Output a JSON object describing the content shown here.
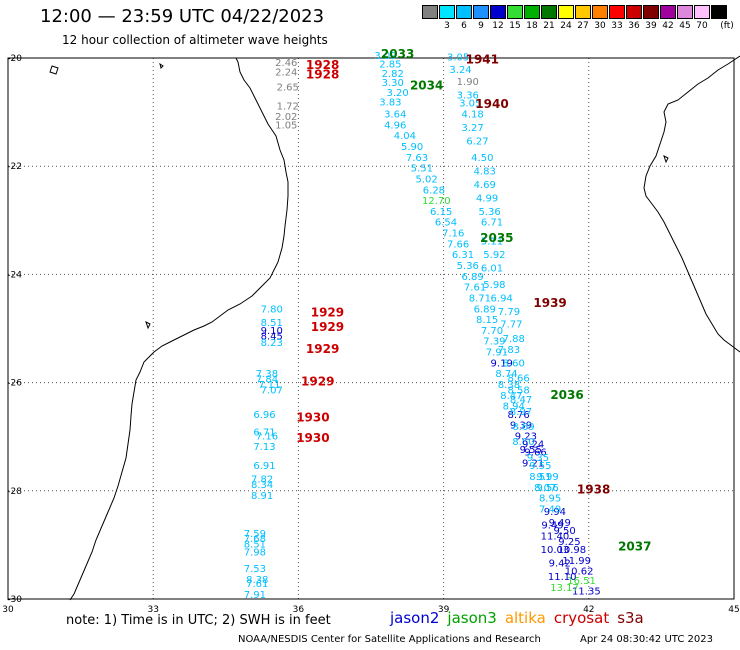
{
  "header": {
    "title": "12:00 — 23:59 UTC 04/22/2023",
    "subtitle": "12 hour collection of altimeter wave heights"
  },
  "scale": {
    "unit": "(ft)",
    "swatches": [
      {
        "label": "",
        "color": "#808080"
      },
      {
        "label": "3",
        "color": "#00e5ff"
      },
      {
        "label": "6",
        "color": "#00bfff"
      },
      {
        "label": "9",
        "color": "#1e90ff"
      },
      {
        "label": "12",
        "color": "#0000cd"
      },
      {
        "label": "15",
        "color": "#33dd33"
      },
      {
        "label": "18",
        "color": "#00b000"
      },
      {
        "label": "21",
        "color": "#007800"
      },
      {
        "label": "24",
        "color": "#ffff00"
      },
      {
        "label": "27",
        "color": "#ffc800"
      },
      {
        "label": "30",
        "color": "#ff8000"
      },
      {
        "label": "33",
        "color": "#ff0000"
      },
      {
        "label": "36",
        "color": "#cc0000"
      },
      {
        "label": "39",
        "color": "#800000"
      },
      {
        "label": "42",
        "color": "#a000a0"
      },
      {
        "label": "45",
        "color": "#dd88dd"
      },
      {
        "label": "70",
        "color": "#ffc0ff"
      },
      {
        "label": "",
        "color": "#000000"
      }
    ]
  },
  "map": {
    "lon_range": [
      30,
      45
    ],
    "lat_range": [
      -30,
      -20
    ],
    "lon_ticks": [
      "30",
      "33",
      "36",
      "39",
      "42",
      "45"
    ],
    "lat_ticks": [
      "-20",
      "-22",
      "-24",
      "-26",
      "-28",
      "-30"
    ],
    "grid": "dotted"
  },
  "observations": [
    {
      "t": "2.46",
      "lon": 35.75,
      "lat": -20.15,
      "c": "#808080"
    },
    {
      "t": "2.24",
      "lon": 35.75,
      "lat": -20.32,
      "c": "#808080"
    },
    {
      "t": "2.65",
      "lon": 35.78,
      "lat": -20.6,
      "c": "#808080"
    },
    {
      "t": "1.72",
      "lon": 35.78,
      "lat": -20.95,
      "c": "#808080"
    },
    {
      "t": "2.02",
      "lon": 35.75,
      "lat": -21.15,
      "c": "#808080"
    },
    {
      "t": "1.05",
      "lon": 35.75,
      "lat": -21.3,
      "c": "#808080"
    },
    {
      "t": "3.09",
      "lon": 37.8,
      "lat": -20.02,
      "c": "#00bfff"
    },
    {
      "t": "2.85",
      "lon": 37.9,
      "lat": -20.18,
      "c": "#00bfff"
    },
    {
      "t": "2.82",
      "lon": 37.95,
      "lat": -20.35,
      "c": "#00bfff"
    },
    {
      "t": "3.30",
      "lon": 37.95,
      "lat": -20.52,
      "c": "#00bfff"
    },
    {
      "t": "3.20",
      "lon": 38.05,
      "lat": -20.7,
      "c": "#00bfff"
    },
    {
      "t": "3.83",
      "lon": 37.9,
      "lat": -20.88,
      "c": "#00bfff"
    },
    {
      "t": "3.64",
      "lon": 38.0,
      "lat": -21.1,
      "c": "#00bfff"
    },
    {
      "t": "4.96",
      "lon": 38.0,
      "lat": -21.3,
      "c": "#00bfff"
    },
    {
      "t": "4.04",
      "lon": 38.2,
      "lat": -21.5,
      "c": "#00bfff"
    },
    {
      "t": "5.90",
      "lon": 38.35,
      "lat": -21.7,
      "c": "#00bfff"
    },
    {
      "t": "7.63",
      "lon": 38.45,
      "lat": -21.9,
      "c": "#00bfff"
    },
    {
      "t": "5.51",
      "lon": 38.55,
      "lat": -22.1,
      "c": "#00bfff"
    },
    {
      "t": "5.02",
      "lon": 38.65,
      "lat": -22.3,
      "c": "#00bfff"
    },
    {
      "t": "6.28",
      "lon": 38.8,
      "lat": -22.5,
      "c": "#00bfff"
    },
    {
      "t": "12.70",
      "lon": 38.85,
      "lat": -22.7,
      "c": "#33dd33"
    },
    {
      "t": "6.15",
      "lon": 38.95,
      "lat": -22.9,
      "c": "#00bfff"
    },
    {
      "t": "6.54",
      "lon": 39.05,
      "lat": -23.1,
      "c": "#00bfff"
    },
    {
      "t": "7.16",
      "lon": 39.2,
      "lat": -23.3,
      "c": "#00bfff"
    },
    {
      "t": "7.66",
      "lon": 39.3,
      "lat": -23.5,
      "c": "#00bfff"
    },
    {
      "t": "6.31",
      "lon": 39.4,
      "lat": -23.7,
      "c": "#00bfff"
    },
    {
      "t": "5.36",
      "lon": 39.5,
      "lat": -23.9,
      "c": "#00bfff"
    },
    {
      "t": "6.89",
      "lon": 39.6,
      "lat": -24.1,
      "c": "#00bfff"
    },
    {
      "t": "7.61",
      "lon": 39.65,
      "lat": -24.3,
      "c": "#00bfff"
    },
    {
      "t": "8.71",
      "lon": 39.75,
      "lat": -24.5,
      "c": "#00bfff"
    },
    {
      "t": "6.89",
      "lon": 39.85,
      "lat": -24.7,
      "c": "#00bfff"
    },
    {
      "t": "8.15",
      "lon": 39.9,
      "lat": -24.9,
      "c": "#00bfff"
    },
    {
      "t": "7.70",
      "lon": 40.0,
      "lat": -25.1,
      "c": "#00bfff"
    },
    {
      "t": "7.39",
      "lon": 40.05,
      "lat": -25.3,
      "c": "#00bfff"
    },
    {
      "t": "7.91",
      "lon": 40.1,
      "lat": -25.5,
      "c": "#00bfff"
    },
    {
      "t": "9.19",
      "lon": 40.2,
      "lat": -25.7,
      "c": "#0000cd"
    },
    {
      "t": "8.74",
      "lon": 40.3,
      "lat": -25.9,
      "c": "#00bfff"
    },
    {
      "t": "8.38",
      "lon": 40.35,
      "lat": -26.1,
      "c": "#00bfff"
    },
    {
      "t": "8.47",
      "lon": 40.4,
      "lat": -26.3,
      "c": "#00bfff"
    },
    {
      "t": "8.94",
      "lon": 40.45,
      "lat": -26.5,
      "c": "#00bfff"
    },
    {
      "t": "8.76",
      "lon": 40.55,
      "lat": -26.65,
      "c": "#0000cd"
    },
    {
      "t": "9.39",
      "lon": 40.6,
      "lat": -26.85,
      "c": "#0000cd"
    },
    {
      "t": "9.23",
      "lon": 40.7,
      "lat": -27.05,
      "c": "#0000cd"
    },
    {
      "t": "9.55",
      "lon": 40.8,
      "lat": -27.3,
      "c": "#0000cd"
    },
    {
      "t": "9.21",
      "lon": 40.85,
      "lat": -27.55,
      "c": "#0000cd"
    },
    {
      "t": "8.51",
      "lon": 41.0,
      "lat": -27.8,
      "c": "#00bfff"
    },
    {
      "t": "8.07",
      "lon": 41.1,
      "lat": -28.0,
      "c": "#00bfff"
    },
    {
      "t": "8.95",
      "lon": 41.2,
      "lat": -28.2,
      "c": "#00bfff"
    },
    {
      "t": "9.94",
      "lon": 41.3,
      "lat": -28.45,
      "c": "#0000cd"
    },
    {
      "t": "9.49",
      "lon": 41.4,
      "lat": -28.65,
      "c": "#0000cd"
    },
    {
      "t": "9.50",
      "lon": 41.5,
      "lat": -28.8,
      "c": "#0000cd"
    },
    {
      "t": "9.25",
      "lon": 41.6,
      "lat": -29.0,
      "c": "#0000cd"
    },
    {
      "t": "10.98",
      "lon": 41.65,
      "lat": -29.15,
      "c": "#0000cd"
    },
    {
      "t": "11.99",
      "lon": 41.75,
      "lat": -29.35,
      "c": "#0000cd"
    },
    {
      "t": "10.62",
      "lon": 41.8,
      "lat": -29.55,
      "c": "#0000cd"
    },
    {
      "t": "16.51",
      "lon": 41.85,
      "lat": -29.72,
      "c": "#33dd33"
    },
    {
      "t": "11.35",
      "lon": 41.95,
      "lat": -29.92,
      "c": "#0000cd"
    },
    {
      "t": "7.49",
      "lon": 41.2,
      "lat": -28.4,
      "c": "#00bfff"
    },
    {
      "t": "9.49",
      "lon": 41.25,
      "lat": -28.7,
      "c": "#0000cd"
    },
    {
      "t": "11.40",
      "lon": 41.3,
      "lat": -28.9,
      "c": "#0000cd"
    },
    {
      "t": "10.03",
      "lon": 41.3,
      "lat": -29.15,
      "c": "#0000cd"
    },
    {
      "t": "9.42",
      "lon": 41.4,
      "lat": -29.4,
      "c": "#0000cd"
    },
    {
      "t": "11.10",
      "lon": 41.45,
      "lat": -29.65,
      "c": "#0000cd"
    },
    {
      "t": "13.17",
      "lon": 41.5,
      "lat": -29.85,
      "c": "#33dd33"
    },
    {
      "t": "3.05",
      "lon": 39.3,
      "lat": -20.05,
      "c": "#00bfff"
    },
    {
      "t": "3.24",
      "lon": 39.35,
      "lat": -20.28,
      "c": "#00bfff"
    },
    {
      "t": "1.90",
      "lon": 39.5,
      "lat": -20.5,
      "c": "#808080"
    },
    {
      "t": "3.36",
      "lon": 39.5,
      "lat": -20.75,
      "c": "#00bfff"
    },
    {
      "t": "3.05",
      "lon": 39.55,
      "lat": -20.9,
      "c": "#00bfff"
    },
    {
      "t": "4.18",
      "lon": 39.6,
      "lat": -21.1,
      "c": "#00bfff"
    },
    {
      "t": "3.27",
      "lon": 39.6,
      "lat": -21.35,
      "c": "#00bfff"
    },
    {
      "t": "6.27",
      "lon": 39.7,
      "lat": -21.6,
      "c": "#00bfff"
    },
    {
      "t": "4.50",
      "lon": 39.8,
      "lat": -21.9,
      "c": "#00bfff"
    },
    {
      "t": "4.83",
      "lon": 39.85,
      "lat": -22.15,
      "c": "#00bfff"
    },
    {
      "t": "4.69",
      "lon": 39.85,
      "lat": -22.4,
      "c": "#00bfff"
    },
    {
      "t": "4.99",
      "lon": 39.9,
      "lat": -22.65,
      "c": "#00bfff"
    },
    {
      "t": "5.36",
      "lon": 39.95,
      "lat": -22.9,
      "c": "#00bfff"
    },
    {
      "t": "6.71",
      "lon": 40.0,
      "lat": -23.1,
      "c": "#00bfff"
    },
    {
      "t": "5.11",
      "lon": 40.0,
      "lat": -23.45,
      "c": "#00bfff"
    },
    {
      "t": "5.92",
      "lon": 40.05,
      "lat": -23.7,
      "c": "#00bfff"
    },
    {
      "t": "6.01",
      "lon": 40.0,
      "lat": -23.95,
      "c": "#00bfff"
    },
    {
      "t": "5.98",
      "lon": 40.05,
      "lat": -24.25,
      "c": "#00bfff"
    },
    {
      "t": "6.94",
      "lon": 40.2,
      "lat": -24.5,
      "c": "#00bfff"
    },
    {
      "t": "7.79",
      "lon": 40.35,
      "lat": -24.75,
      "c": "#00bfff"
    },
    {
      "t": "7.77",
      "lon": 40.4,
      "lat": -24.98,
      "c": "#00bfff"
    },
    {
      "t": "7.88",
      "lon": 40.45,
      "lat": -25.25,
      "c": "#00bfff"
    },
    {
      "t": "7.83",
      "lon": 40.35,
      "lat": -25.45,
      "c": "#00bfff"
    },
    {
      "t": "8.60",
      "lon": 40.45,
      "lat": -25.7,
      "c": "#00bfff"
    },
    {
      "t": "8.66",
      "lon": 40.55,
      "lat": -25.98,
      "c": "#00bfff"
    },
    {
      "t": "8.58",
      "lon": 40.55,
      "lat": -26.2,
      "c": "#00bfff"
    },
    {
      "t": "8.47",
      "lon": 40.6,
      "lat": -26.38,
      "c": "#00bfff"
    },
    {
      "t": "8.97",
      "lon": 40.6,
      "lat": -26.6,
      "c": "#00bfff"
    },
    {
      "t": "8.69",
      "lon": 40.65,
      "lat": -26.88,
      "c": "#00bfff"
    },
    {
      "t": "8.60",
      "lon": 40.65,
      "lat": -27.15,
      "c": "#00bfff"
    },
    {
      "t": "9.24",
      "lon": 40.85,
      "lat": -27.2,
      "c": "#0000cd"
    },
    {
      "t": "9.66",
      "lon": 40.9,
      "lat": -27.35,
      "c": "#0000cd"
    },
    {
      "t": "9.35",
      "lon": 40.95,
      "lat": -27.45,
      "c": "#00bfff"
    },
    {
      "t": "9.55",
      "lon": 41.0,
      "lat": -27.6,
      "c": "#00bfff"
    },
    {
      "t": "9.99",
      "lon": 41.15,
      "lat": -27.8,
      "c": "#00bfff"
    },
    {
      "t": "9.56",
      "lon": 41.15,
      "lat": -28.0,
      "c": "#00bfff"
    },
    {
      "t": "7.80",
      "lon": 35.45,
      "lat": -24.7,
      "c": "#00bfff"
    },
    {
      "t": "8.51",
      "lon": 35.45,
      "lat": -24.95,
      "c": "#00bfff"
    },
    {
      "t": "9.10",
      "lon": 35.45,
      "lat": -25.1,
      "c": "#0000cd"
    },
    {
      "t": "8.45",
      "lon": 35.45,
      "lat": -25.2,
      "c": "#0000cd"
    },
    {
      "t": "8.23",
      "lon": 35.45,
      "lat": -25.32,
      "c": "#00bfff"
    },
    {
      "t": "7.38",
      "lon": 35.35,
      "lat": -25.9,
      "c": "#00bfff"
    },
    {
      "t": "7.84",
      "lon": 35.35,
      "lat": -26.0,
      "c": "#00bfff"
    },
    {
      "t": "7.11",
      "lon": 35.4,
      "lat": -26.1,
      "c": "#00bfff"
    },
    {
      "t": "7.07",
      "lon": 35.45,
      "lat": -26.2,
      "c": "#00bfff"
    },
    {
      "t": "6.96",
      "lon": 35.3,
      "lat": -26.65,
      "c": "#00bfff"
    },
    {
      "t": "6.71",
      "lon": 35.3,
      "lat": -26.98,
      "c": "#00bfff"
    },
    {
      "t": "7.16",
      "lon": 35.35,
      "lat": -27.05,
      "c": "#00bfff"
    },
    {
      "t": "7.13",
      "lon": 35.3,
      "lat": -27.25,
      "c": "#00bfff"
    },
    {
      "t": "6.91",
      "lon": 35.3,
      "lat": -27.6,
      "c": "#00bfff"
    },
    {
      "t": "7.82",
      "lon": 35.25,
      "lat": -27.85,
      "c": "#00bfff"
    },
    {
      "t": "8.34",
      "lon": 35.25,
      "lat": -27.95,
      "c": "#00bfff"
    },
    {
      "t": "8.91",
      "lon": 35.25,
      "lat": -28.15,
      "c": "#00bfff"
    },
    {
      "t": "7.59",
      "lon": 35.1,
      "lat": -28.85,
      "c": "#00bfff"
    },
    {
      "t": "7.68",
      "lon": 35.1,
      "lat": -28.95,
      "c": "#00bfff"
    },
    {
      "t": "8.51",
      "lon": 35.1,
      "lat": -29.05,
      "c": "#00bfff"
    },
    {
      "t": "7.98",
      "lon": 35.1,
      "lat": -29.2,
      "c": "#00bfff"
    },
    {
      "t": "7.53",
      "lon": 35.1,
      "lat": -29.5,
      "c": "#00bfff"
    },
    {
      "t": "8.38",
      "lon": 35.15,
      "lat": -29.7,
      "c": "#00bfff"
    },
    {
      "t": "7.61",
      "lon": 35.15,
      "lat": -29.78,
      "c": "#00bfff"
    },
    {
      "t": "7.91",
      "lon": 35.1,
      "lat": -29.98,
      "c": "#00bfff"
    }
  ],
  "pass_labels": [
    {
      "t": "2033",
      "lon": 38.05,
      "lat": -20.0,
      "c": "#007800"
    },
    {
      "t": "1941",
      "lon": 39.8,
      "lat": -20.1,
      "c": "#800000"
    },
    {
      "t": "1928",
      "lon": 36.5,
      "lat": -20.2,
      "c": "#cc0000"
    },
    {
      "t": "1928",
      "lon": 36.5,
      "lat": -20.38,
      "c": "#cc0000"
    },
    {
      "t": "2034",
      "lon": 38.65,
      "lat": -20.58,
      "c": "#007800"
    },
    {
      "t": "1940",
      "lon": 40.0,
      "lat": -20.92,
      "c": "#800000"
    },
    {
      "t": "2035",
      "lon": 40.1,
      "lat": -23.4,
      "c": "#007800"
    },
    {
      "t": "1939",
      "lon": 41.2,
      "lat": -24.6,
      "c": "#800000"
    },
    {
      "t": "1929",
      "lon": 36.6,
      "lat": -24.78,
      "c": "#cc0000"
    },
    {
      "t": "1929",
      "lon": 36.6,
      "lat": -25.05,
      "c": "#cc0000"
    },
    {
      "t": "1929",
      "lon": 36.5,
      "lat": -25.45,
      "c": "#cc0000"
    },
    {
      "t": "1929",
      "lon": 36.4,
      "lat": -26.05,
      "c": "#cc0000"
    },
    {
      "t": "2036",
      "lon": 41.55,
      "lat": -26.3,
      "c": "#007800"
    },
    {
      "t": "1930",
      "lon": 36.3,
      "lat": -26.72,
      "c": "#cc0000"
    },
    {
      "t": "1930",
      "lon": 36.3,
      "lat": -27.1,
      "c": "#cc0000"
    },
    {
      "t": "1938",
      "lon": 42.1,
      "lat": -28.05,
      "c": "#800000"
    },
    {
      "t": "2037",
      "lon": 42.95,
      "lat": -29.1,
      "c": "#007800"
    }
  ],
  "footer": {
    "note": "note: 1) Time is in UTC; 2) SWH is in feet",
    "legend": [
      {
        "name": "jason2",
        "color": "#0000cd"
      },
      {
        "name": "jason3",
        "color": "#00a000"
      },
      {
        "name": "altika",
        "color": "#ff9900"
      },
      {
        "name": "cryosat",
        "color": "#cc0000"
      },
      {
        "name": "s3a",
        "color": "#800000"
      }
    ],
    "credit": "NOAA/NESDIS Center for Satellite Applications and Research",
    "timestamp": "Apr 24 08:30:42 UTC 2023"
  }
}
